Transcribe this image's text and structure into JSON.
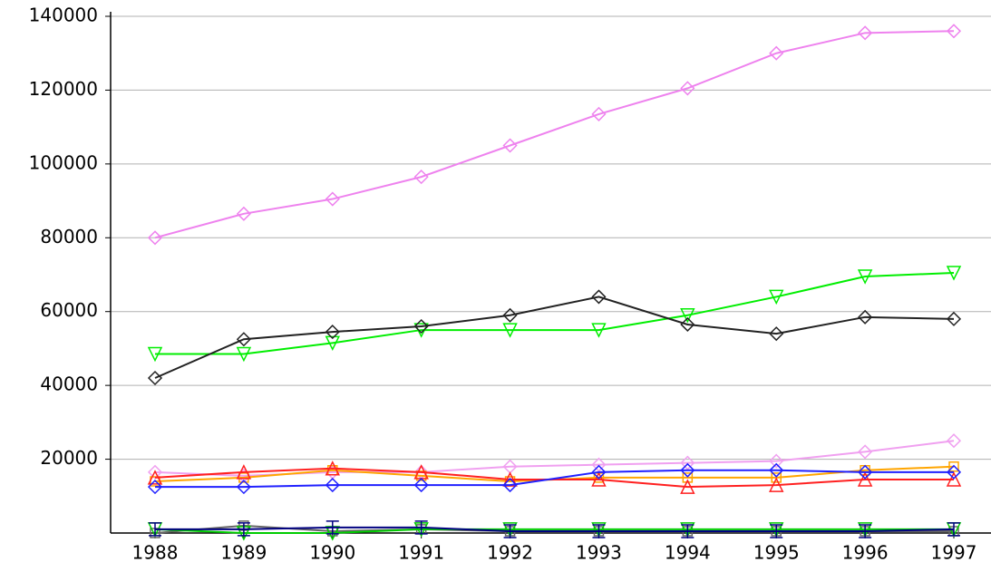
{
  "chart_data": {
    "type": "line",
    "categories": [
      "1988",
      "1989",
      "1990",
      "1991",
      "1992",
      "1993",
      "1994",
      "1995",
      "1996",
      "1997"
    ],
    "ylim": [
      0,
      140000
    ],
    "yticks": [
      20000,
      40000,
      60000,
      80000,
      100000,
      120000,
      140000
    ],
    "grid": true,
    "series": [
      {
        "color": "#ee82ee",
        "marker": "diamond",
        "values": [
          80000,
          86500,
          90500,
          96500,
          105000,
          113500,
          120500,
          130000,
          135500,
          136000
        ]
      },
      {
        "color": "#00ee00",
        "marker": "triangle-down",
        "values": [
          48500,
          48500,
          51500,
          55000,
          55000,
          55000,
          59000,
          64000,
          69500,
          70500
        ]
      },
      {
        "color": "#222222",
        "marker": "diamond",
        "values": [
          42000,
          52500,
          54500,
          56000,
          59000,
          64000,
          56500,
          54000,
          58500,
          58000
        ]
      },
      {
        "color": "#f0a0f0",
        "marker": "diamond",
        "values": [
          16500,
          15500,
          16500,
          16500,
          18000,
          18500,
          19000,
          19500,
          22000,
          25000
        ]
      },
      {
        "color": "#ffa500",
        "marker": "square",
        "values": [
          14000,
          15000,
          17000,
          15500,
          14000,
          15000,
          15000,
          15000,
          17000,
          18000
        ]
      },
      {
        "color": "#ff2020",
        "marker": "triangle-up",
        "values": [
          15000,
          16500,
          17500,
          16500,
          14500,
          14500,
          12500,
          13000,
          14500,
          14500
        ]
      },
      {
        "color": "#2020ff",
        "marker": "diamond",
        "values": [
          12500,
          12500,
          13000,
          13000,
          13000,
          16500,
          17000,
          17000,
          16500,
          16500
        ]
      },
      {
        "color": "#666666",
        "marker": "square",
        "values": [
          0,
          2000,
          500,
          1000,
          500,
          500,
          500,
          500,
          500,
          500
        ]
      },
      {
        "color": "#00cc00",
        "marker": "triangle-down",
        "values": [
          1000,
          0,
          0,
          1000,
          1000,
          1000,
          1000,
          1000,
          1000,
          1000
        ]
      },
      {
        "color": "#000080",
        "marker": "bar",
        "values": [
          1000,
          1000,
          1500,
          1500,
          500,
          500,
          500,
          500,
          500,
          1000
        ]
      }
    ]
  }
}
